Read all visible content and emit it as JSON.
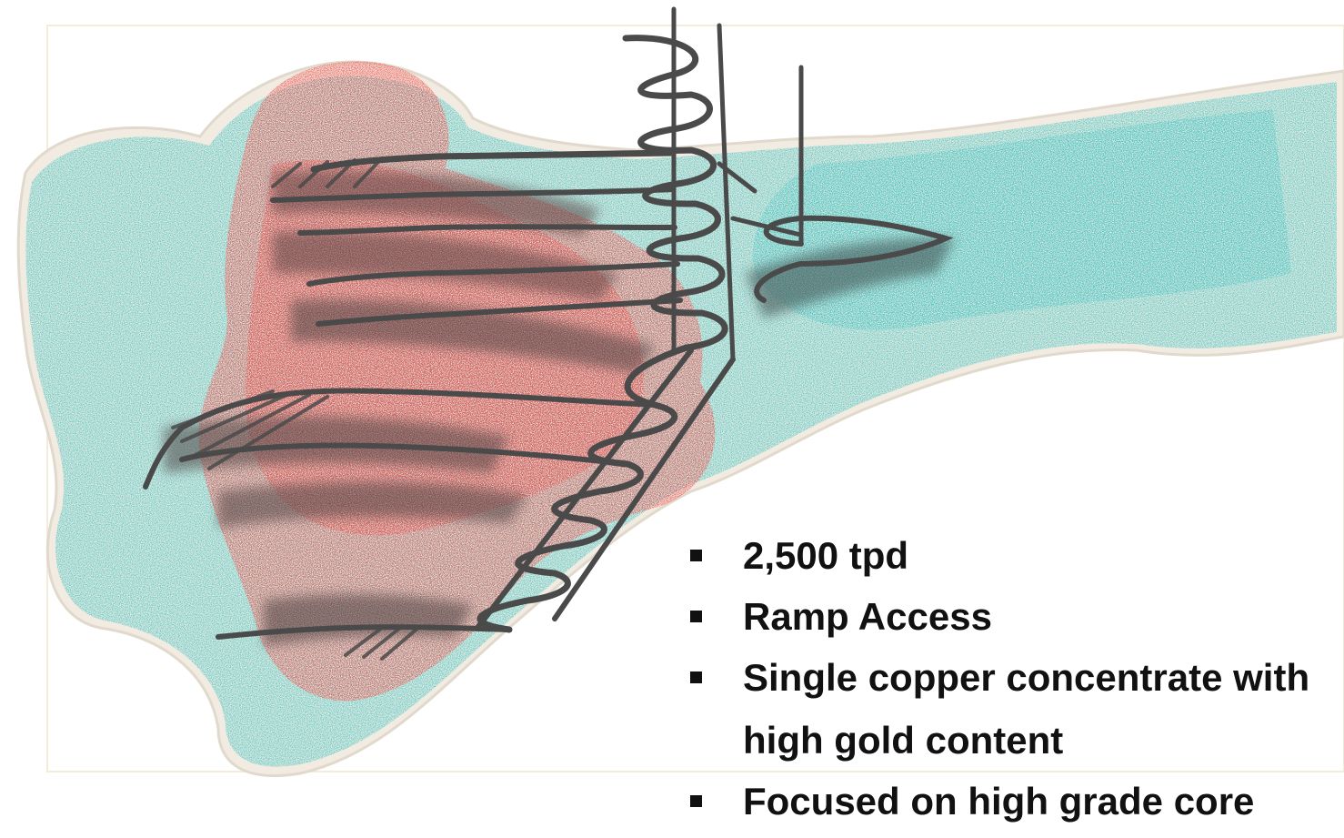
{
  "colors": {
    "low_grade_zone": "#3cc3c3",
    "high_grade_zone": "#ee4a48",
    "ramp": "#4a4a4a",
    "shell": "#ece6dc",
    "text": "#111111"
  },
  "bullets": [
    {
      "text": "2,500 tpd"
    },
    {
      "text": "Ramp Access"
    },
    {
      "line1": "Single copper concentrate with",
      "line2": "high gold content"
    },
    {
      "text": "Focused on high grade core"
    }
  ]
}
